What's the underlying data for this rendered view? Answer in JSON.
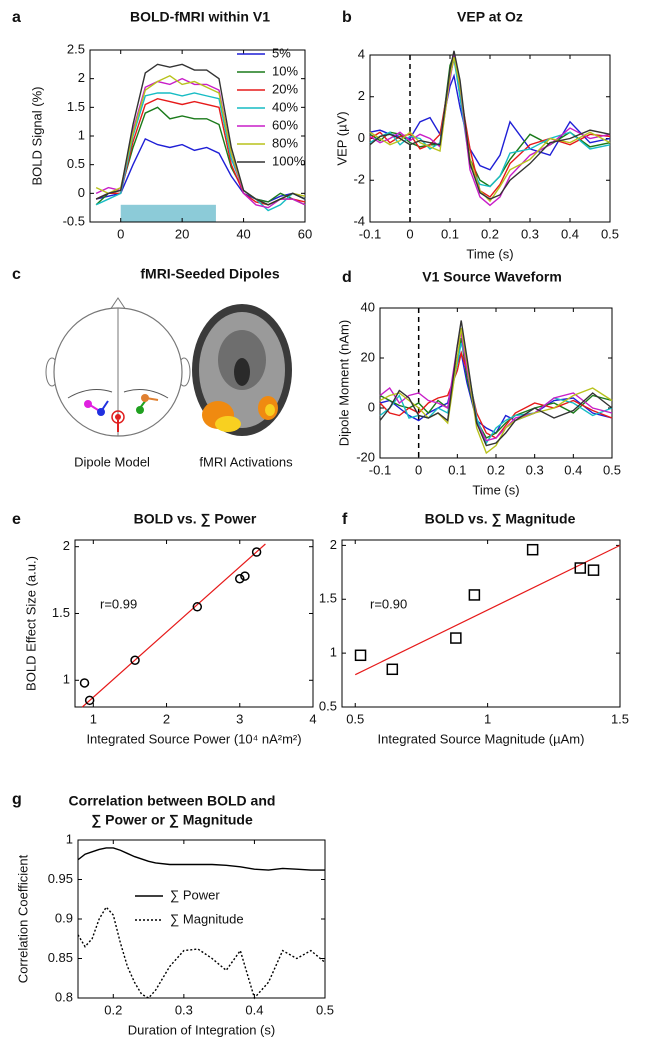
{
  "chart_data": [
    {
      "type": "line",
      "panel": "a",
      "title": "BOLD-fMRI within V1",
      "ylabel": "BOLD Signal (%)",
      "xlim": [
        -10,
        60
      ],
      "xticks": [
        0,
        20,
        40,
        60
      ],
      "ylim": [
        -0.5,
        2.5
      ],
      "yticks": [
        -0.5,
        0,
        0.5,
        1,
        1.5,
        2,
        2.5
      ],
      "legend": "upper right",
      "highlight": {
        "x": [
          0,
          31
        ],
        "y": [
          -0.5,
          -0.2
        ],
        "color": "#8ccbd8"
      },
      "x": [
        -8,
        -4,
        0,
        4,
        8,
        12,
        16,
        20,
        24,
        28,
        32,
        36,
        40,
        44,
        48,
        52,
        56,
        60
      ],
      "series": [
        {
          "name": "5%",
          "color": "#1f1fd6",
          "values": [
            -0.1,
            -0.05,
            0,
            0.5,
            0.95,
            0.85,
            0.8,
            0.85,
            0.75,
            0.8,
            0.7,
            0.3,
            0,
            -0.1,
            -0.15,
            -0.05,
            0,
            -0.1
          ]
        },
        {
          "name": "10%",
          "color": "#1a7a1a",
          "values": [
            -0.2,
            0,
            0.05,
            0.8,
            1.4,
            1.5,
            1.3,
            1.35,
            1.3,
            1.3,
            1.2,
            0.45,
            0.05,
            -0.1,
            -0.15,
            0,
            -0.1,
            -0.2
          ]
        },
        {
          "name": "20%",
          "color": "#e61a1a",
          "values": [
            -0.1,
            0,
            0,
            0.9,
            1.55,
            1.65,
            1.6,
            1.55,
            1.6,
            1.55,
            1.5,
            0.5,
            0,
            -0.15,
            -0.2,
            -0.1,
            -0.1,
            -0.15
          ]
        },
        {
          "name": "40%",
          "color": "#17bcc4",
          "values": [
            -0.2,
            -0.1,
            0,
            1.0,
            1.7,
            1.75,
            1.75,
            1.7,
            1.75,
            1.7,
            1.65,
            0.6,
            0.05,
            -0.1,
            -0.3,
            -0.2,
            0,
            -0.1
          ]
        },
        {
          "name": "60%",
          "color": "#c81ec8",
          "values": [
            0,
            0.1,
            0.05,
            1.1,
            1.85,
            1.95,
            1.9,
            2.0,
            1.9,
            1.9,
            1.8,
            0.7,
            0,
            -0.2,
            -0.25,
            -0.1,
            -0.1,
            -0.2
          ]
        },
        {
          "name": "80%",
          "color": "#b8c21c",
          "values": [
            0.1,
            0,
            0.1,
            1.05,
            1.8,
            1.95,
            2.05,
            1.9,
            1.95,
            1.85,
            1.75,
            0.7,
            0.05,
            -0.1,
            -0.2,
            -0.1,
            0,
            -0.05
          ]
        },
        {
          "name": "100%",
          "color": "#333333",
          "values": [
            -0.1,
            0,
            0.05,
            1.2,
            2.1,
            2.25,
            2.2,
            2.25,
            2.15,
            2.15,
            2.0,
            0.8,
            0.05,
            -0.1,
            -0.2,
            -0.1,
            0,
            -0.1
          ]
        }
      ]
    },
    {
      "type": "line",
      "panel": "b",
      "title": "VEP at Oz",
      "xlabel": "Time (s)",
      "ylabel": "VEP (µV)",
      "xlim": [
        -0.1,
        0.5
      ],
      "xticks": [
        -0.1,
        0,
        0.1,
        0.2,
        0.3,
        0.4,
        0.5
      ],
      "ylim": [
        -4,
        4
      ],
      "yticks": [
        -4,
        -2,
        0,
        2,
        4
      ],
      "vline": 0,
      "x": [
        -0.1,
        -0.075,
        -0.05,
        -0.025,
        0,
        0.025,
        0.05,
        0.075,
        0.1,
        0.11,
        0.125,
        0.15,
        0.175,
        0.2,
        0.225,
        0.25,
        0.3,
        0.35,
        0.4,
        0.45,
        0.5
      ],
      "series": [
        {
          "name": "5%",
          "color": "#1f1fd6",
          "values": [
            0.3,
            0.4,
            0.2,
            0.1,
            0,
            0.8,
            1,
            0.2,
            2.5,
            3,
            1.5,
            -0.5,
            -1.3,
            -1.5,
            -0.8,
            0.8,
            -0.5,
            -0.8,
            0.8,
            -0.2,
            0
          ]
        },
        {
          "name": "10%",
          "color": "#1a7a1a",
          "values": [
            0.2,
            -0.1,
            0.3,
            0.2,
            -0.2,
            -0.4,
            -0.3,
            -0.3,
            3.5,
            4,
            2,
            -1,
            -2,
            -2.3,
            -1.8,
            -1,
            0.2,
            -0.3,
            0.3,
            -0.4,
            -0.2
          ]
        },
        {
          "name": "20%",
          "color": "#e61a1a",
          "values": [
            0,
            0.3,
            -0.2,
            0.1,
            0.2,
            -0.5,
            -0.3,
            0.2,
            3,
            3.8,
            2.3,
            -0.5,
            -2.5,
            -2.8,
            -2.2,
            -1.2,
            -0.3,
            0,
            -0.3,
            0.2,
            0.1
          ]
        },
        {
          "name": "40%",
          "color": "#17bcc4",
          "values": [
            -0.2,
            0.1,
            0.3,
            -0.3,
            0.1,
            0,
            -0.5,
            -0.2,
            3.2,
            3.8,
            2,
            -1.3,
            -2.2,
            -2.3,
            -1.8,
            -0.7,
            -0.5,
            0,
            0.3,
            -0.5,
            -0.3
          ]
        },
        {
          "name": "60%",
          "color": "#c81ec8",
          "values": [
            0.1,
            -0.2,
            0,
            0.3,
            -0.1,
            0.2,
            0,
            -0.4,
            2.8,
            4,
            2.5,
            -1.5,
            -2.8,
            -3.2,
            -2.8,
            -1.8,
            -0.8,
            -0.3,
            0.5,
            0,
            0.2
          ]
        },
        {
          "name": "80%",
          "color": "#b8c21c",
          "values": [
            0.3,
            0,
            -0.3,
            -0.1,
            0.3,
            -0.2,
            -0.4,
            -0.6,
            3,
            3.9,
            2.5,
            -1,
            -2.5,
            -3,
            -2.3,
            -1.5,
            -1,
            0,
            -0.2,
            0.3,
            -0.2
          ]
        },
        {
          "name": "100%",
          "color": "#333333",
          "values": [
            -0.3,
            0.1,
            0.2,
            0,
            -0.3,
            -0.1,
            -0.2,
            -0.3,
            3.3,
            4.2,
            2.8,
            -1.2,
            -2.6,
            -2.9,
            -2.7,
            -2,
            -1.2,
            -0.2,
            0,
            0.4,
            0.2
          ]
        }
      ]
    },
    {
      "type": "diagram",
      "panel": "c",
      "title": "fMRI-Seeded Dipoles",
      "captions": [
        "Dipole Model",
        "fMRI Activations"
      ]
    },
    {
      "type": "line",
      "panel": "d",
      "title": "V1 Source Waveform",
      "xlabel": "Time (s)",
      "ylabel": "Dipole Moment (nAm)",
      "xlim": [
        -0.1,
        0.5
      ],
      "xticks": [
        -0.1,
        0,
        0.1,
        0.2,
        0.3,
        0.4,
        0.5
      ],
      "ylim": [
        -20,
        40
      ],
      "yticks": [
        -20,
        0,
        20,
        40
      ],
      "vline": 0,
      "x": [
        -0.1,
        -0.075,
        -0.05,
        -0.025,
        0,
        0.025,
        0.05,
        0.075,
        0.1,
        0.11,
        0.125,
        0.15,
        0.175,
        0.2,
        0.225,
        0.25,
        0.3,
        0.35,
        0.4,
        0.45,
        0.5
      ],
      "series": [
        {
          "name": "5%",
          "color": "#1f1fd6",
          "values": [
            2,
            3,
            0,
            -3,
            -5,
            -2,
            0,
            2,
            18,
            22,
            10,
            -5,
            -8,
            -10,
            -3,
            -5,
            -2,
            3,
            4,
            -2,
            -4
          ]
        },
        {
          "name": "10%",
          "color": "#1a7a1a",
          "values": [
            5,
            3,
            1,
            0,
            2,
            -2,
            3,
            0,
            20,
            28,
            12,
            -5,
            -12,
            -10,
            -6,
            -3,
            0,
            2,
            -2,
            5,
            3
          ]
        },
        {
          "name": "20%",
          "color": "#e61a1a",
          "values": [
            2,
            -2,
            -3,
            0,
            -2,
            2,
            4,
            5,
            15,
            22,
            15,
            -2,
            -10,
            -12,
            -7,
            -2,
            2,
            0,
            3,
            -1,
            -4
          ]
        },
        {
          "name": "40%",
          "color": "#17bcc4",
          "values": [
            -3,
            0,
            5,
            -4,
            -3,
            -4,
            0,
            -2,
            18,
            26,
            18,
            -4,
            -14,
            -8,
            -5,
            -3,
            -2,
            4,
            2,
            -3,
            0
          ]
        },
        {
          "name": "60%",
          "color": "#c81ec8",
          "values": [
            5,
            8,
            2,
            5,
            6,
            3,
            2,
            0,
            25,
            30,
            15,
            -6,
            -13,
            -12,
            -8,
            -4,
            -2,
            4,
            6,
            0,
            -2
          ]
        },
        {
          "name": "80%",
          "color": "#b8c21c",
          "values": [
            3,
            5,
            6,
            3,
            0,
            -4,
            -2,
            -6,
            20,
            32,
            18,
            -8,
            -18,
            -15,
            -8,
            -5,
            -2,
            0,
            5,
            8,
            3
          ]
        },
        {
          "name": "100%",
          "color": "#333333",
          "values": [
            -5,
            0,
            7,
            4,
            -3,
            -4,
            -2,
            -5,
            25,
            35,
            20,
            -6,
            -15,
            -14,
            -10,
            -5,
            0,
            -4,
            -1,
            6,
            0
          ]
        }
      ]
    },
    {
      "type": "scatter",
      "panel": "e",
      "title": "BOLD vs. ∑ Power",
      "xlabel": "Integrated Source Power (10⁴ nA²m²)",
      "ylabel": "BOLD Effect Size (a.u.)",
      "annotation": "r=0.99",
      "xlim": [
        0.75,
        4
      ],
      "xticks": [
        1,
        2,
        3,
        4
      ],
      "ylim": [
        0.8,
        2.05
      ],
      "yticks": [
        1,
        1.5,
        2
      ],
      "marker": "circle",
      "color": "#000000",
      "x": [
        0.88,
        0.95,
        1.57,
        2.42,
        3.0,
        3.07,
        3.23
      ],
      "y": [
        0.98,
        0.85,
        1.15,
        1.55,
        1.76,
        1.78,
        1.96
      ],
      "fit": {
        "x": [
          0.85,
          3.35
        ],
        "y": [
          0.8,
          2.02
        ],
        "color": "#e61a1a"
      }
    },
    {
      "type": "scatter",
      "panel": "f",
      "title": "BOLD vs. ∑ Magnitude",
      "xlabel": "Integrated Source Magnitude (µAm)",
      "annotation": "r=0.90",
      "xlim": [
        0.45,
        1.5
      ],
      "xticks": [
        0.5,
        1,
        1.5
      ],
      "ylim": [
        0.5,
        2.05
      ],
      "yticks": [
        0.5,
        1,
        1.5,
        2
      ],
      "marker": "square",
      "color": "#000000",
      "x": [
        0.52,
        0.64,
        0.88,
        0.95,
        1.17,
        1.35,
        1.4
      ],
      "y": [
        0.98,
        0.85,
        1.14,
        1.54,
        1.96,
        1.79,
        1.77
      ],
      "fit": {
        "x": [
          0.5,
          1.5
        ],
        "y": [
          0.8,
          2.0
        ],
        "color": "#e61a1a"
      }
    },
    {
      "type": "line",
      "panel": "g",
      "title": [
        "Correlation between BOLD and",
        "∑ Power or ∑ Magnitude"
      ],
      "xlabel": "Duration of Integration (s)",
      "ylabel": "Correlation Coefficient",
      "xlim": [
        0.15,
        0.5
      ],
      "xticks": [
        0.2,
        0.3,
        0.4,
        0.5
      ],
      "ylim": [
        0.8,
        1.0
      ],
      "yticks": [
        0.8,
        0.85,
        0.9,
        0.95,
        1
      ],
      "legend": "center left",
      "x": [
        0.15,
        0.16,
        0.17,
        0.18,
        0.19,
        0.2,
        0.21,
        0.22,
        0.23,
        0.24,
        0.25,
        0.26,
        0.28,
        0.3,
        0.32,
        0.34,
        0.36,
        0.38,
        0.4,
        0.42,
        0.44,
        0.46,
        0.48,
        0.5
      ],
      "series": [
        {
          "name": "∑ Power",
          "color": "#000000",
          "dash": "solid",
          "values": [
            0.975,
            0.982,
            0.985,
            0.988,
            0.99,
            0.99,
            0.987,
            0.983,
            0.979,
            0.976,
            0.973,
            0.971,
            0.969,
            0.969,
            0.969,
            0.969,
            0.968,
            0.966,
            0.963,
            0.962,
            0.964,
            0.963,
            0.962,
            0.962
          ]
        },
        {
          "name": "∑ Magnitude",
          "color": "#000000",
          "dash": "dotted",
          "values": [
            0.88,
            0.865,
            0.875,
            0.9,
            0.915,
            0.905,
            0.87,
            0.84,
            0.82,
            0.805,
            0.8,
            0.81,
            0.84,
            0.86,
            0.862,
            0.85,
            0.835,
            0.86,
            0.8,
            0.82,
            0.86,
            0.85,
            0.86,
            0.845
          ]
        }
      ]
    }
  ]
}
